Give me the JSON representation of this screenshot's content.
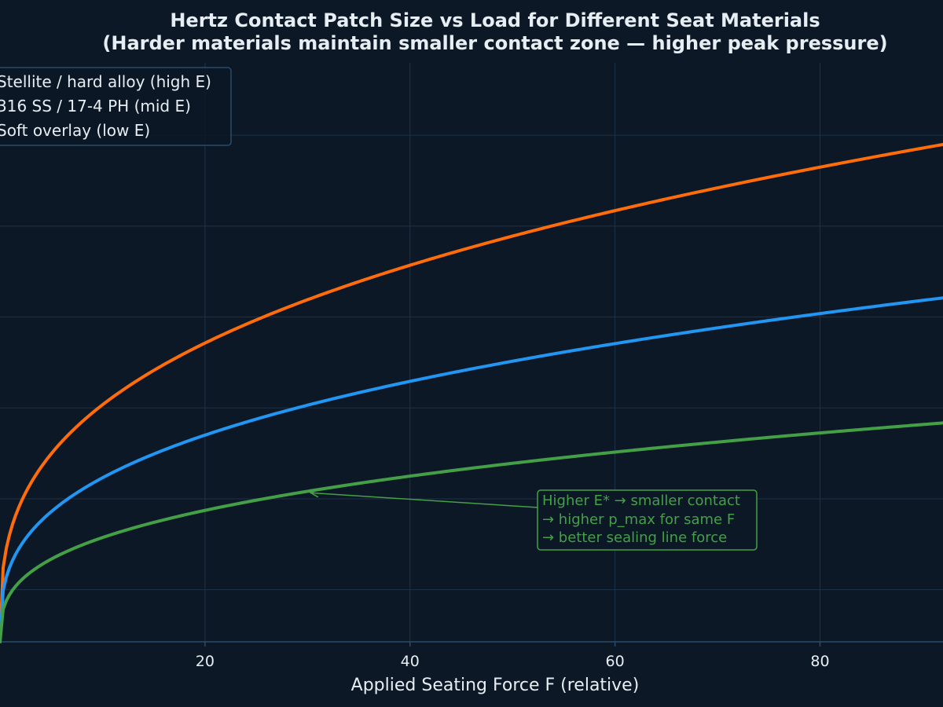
{
  "chart_data": {
    "type": "line",
    "title": "Hertz Contact Patch Size vs Load for Different Seat Materials",
    "subtitle": "(Harder materials maintain smaller contact zone — higher peak pressure)",
    "xlabel": "Applied Seating Force F (relative)",
    "ylabel": "",
    "xlim": [
      0,
      92
    ],
    "ylim": [
      0,
      1.0
    ],
    "x_ticks": [
      20,
      40,
      60,
      80
    ],
    "y_gridlines": [
      0.09,
      0.247,
      0.404,
      0.561,
      0.718,
      0.875
    ],
    "grid": true,
    "legend_position": "top-left",
    "series": [
      {
        "name": "Stellite / hard alloy (high E)",
        "color": "#ff6d0a",
        "x": [
          0,
          2,
          5,
          10,
          20,
          30,
          40,
          50,
          60,
          70,
          80,
          92
        ],
        "values": [
          0.0,
          0.239,
          0.325,
          0.41,
          0.516,
          0.591,
          0.65,
          0.701,
          0.745,
          0.784,
          0.82,
          0.859
        ]
      },
      {
        "name": "316 SS / 17-4 PH (mid E)",
        "color": "#2196f3",
        "x": [
          0,
          2,
          5,
          10,
          20,
          30,
          40,
          50,
          60,
          70,
          80,
          92
        ],
        "values": [
          0.0,
          0.165,
          0.225,
          0.283,
          0.357,
          0.408,
          0.45,
          0.484,
          0.515,
          0.542,
          0.567,
          0.594
        ]
      },
      {
        "name": "Soft overlay (low E)",
        "color": "#43a047",
        "x": [
          0,
          2,
          5,
          10,
          20,
          30,
          40,
          50,
          60,
          70,
          80,
          92
        ],
        "values": [
          0.0,
          0.105,
          0.143,
          0.18,
          0.227,
          0.26,
          0.286,
          0.308,
          0.328,
          0.345,
          0.361,
          0.378
        ]
      }
    ],
    "annotation": {
      "lines": [
        "Higher E* → smaller contact",
        "→ higher p_max for same F",
        "→ better sealing line force"
      ],
      "color": "#43a047",
      "arrow_target": {
        "x": 30,
        "y": 0.26
      }
    }
  },
  "colors": {
    "background": "#0d1826",
    "grid": "#1e3148",
    "axis": "#2a4a6a",
    "text": "#e6edf3",
    "legend_border": "#2a4a6a"
  }
}
